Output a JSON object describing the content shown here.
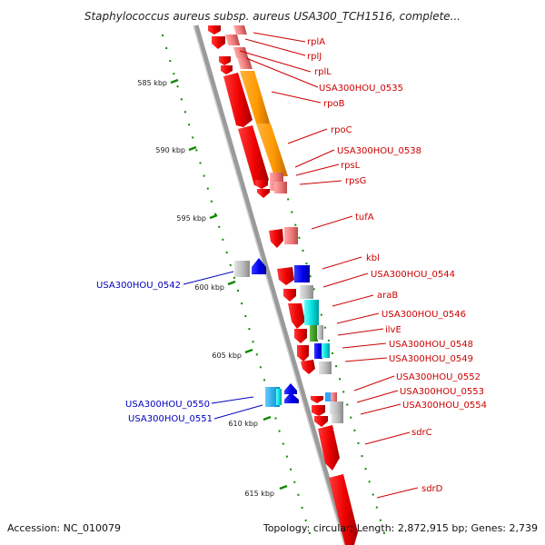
{
  "title": "Staphylococcus aureus subsp. aureus USA300_TCH1516, complete...",
  "footer": {
    "accession": "Accession: NC_010079",
    "summary": "Topology: circular; Length: 2,872,915 bp; Genes: 2,739"
  },
  "ticks": [
    "585 kbp",
    "590 kbp",
    "595 kbp",
    "600 kbp",
    "605 kbp",
    "610 kbp",
    "615 kbp"
  ],
  "genes_right": [
    "rplA",
    "rplJ",
    "rplL",
    "USA300HOU_0535",
    "rpoB",
    "rpoC",
    "USA300HOU_0538",
    "rpsL",
    "rpsG",
    "tufA",
    "kbl",
    "USA300HOU_0544",
    "araB",
    "USA300HOU_0546",
    "ilvE",
    "USA300HOU_0548",
    "USA300HOU_0549",
    "USA300HOU_0552",
    "USA300HOU_0553",
    "USA300HOU_0554",
    "sdrC",
    "sdrD"
  ],
  "genes_left": [
    "USA300HOU_0542",
    "USA300HOU_0550",
    "USA300HOU_0551"
  ],
  "colors": {
    "red": "#ee0000",
    "pink": "#ee7777",
    "orange": "#ff9900",
    "blue": "#0000ee",
    "cyan": "#00dddd",
    "gray": "#bbbbbb",
    "green_dots": "#118800",
    "label_red": "#cc0000",
    "label_blue": "#0000bb"
  }
}
